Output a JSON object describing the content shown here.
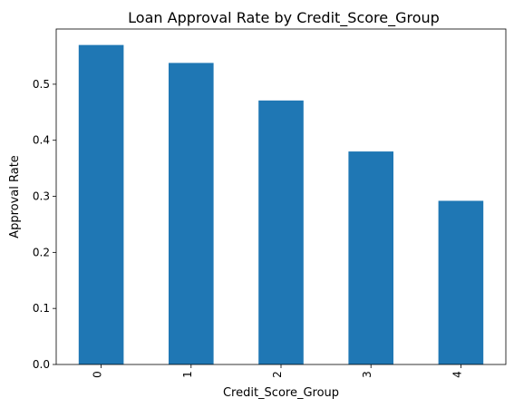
{
  "chart_data": {
    "type": "bar",
    "title": "Loan Approval Rate by Credit_Score_Group",
    "xlabel": "Credit_Score_Group",
    "ylabel": "Approval Rate",
    "categories": [
      "0",
      "1",
      "2",
      "3",
      "4"
    ],
    "values": [
      0.57,
      0.538,
      0.471,
      0.38,
      0.292
    ],
    "ylim": [
      0,
      0.5985
    ],
    "yticks": [
      0.0,
      0.1,
      0.2,
      0.3,
      0.4,
      0.5
    ],
    "ytick_labels": [
      "0.0",
      "0.1",
      "0.2",
      "0.3",
      "0.4",
      "0.5"
    ],
    "bar_color": "#1f77b4",
    "grid": false,
    "legend": false
  }
}
